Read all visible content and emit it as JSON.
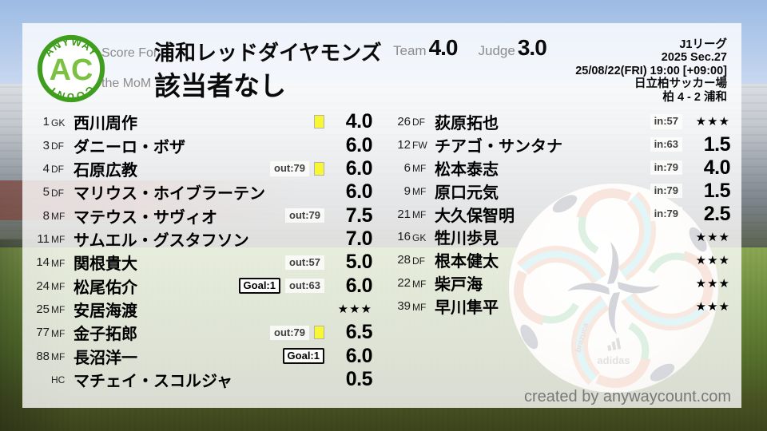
{
  "brand": {
    "arc_top": "ANYWAY",
    "center": "AC",
    "arc_bottom": "COUNT"
  },
  "colors": {
    "logo_ring_green": "#3f9e1d",
    "logo_ac_green": "#7cc143",
    "yellow_card": "#f7f736",
    "panel_overlay": "rgba(255,255,255,0.80)"
  },
  "header": {
    "score_for_label": "Score For",
    "team_name": "浦和レッドダイヤモンズ",
    "mom_label": "the MoM",
    "mom_value": "該当者なし",
    "team_score_label": "Team",
    "team_score": "4.0",
    "judge_score_label": "Judge",
    "judge_score": "3.0"
  },
  "match_info": {
    "league": "J1リーグ",
    "season": "2025 Sec.27",
    "datetime": "25/08/22(FRI) 19:00 [+09:00]",
    "venue": "日立柏サッカー場",
    "result": "柏 4 - 2 浦和"
  },
  "lineup": [
    {
      "num": "1",
      "pos": "GK",
      "name": "西川周作",
      "yellow": true,
      "score": "4.0"
    },
    {
      "num": "3",
      "pos": "DF",
      "name": "ダニーロ・ボザ",
      "score": "6.0"
    },
    {
      "num": "4",
      "pos": "DF",
      "name": "石原広教",
      "out": "out:79",
      "yellow": true,
      "score": "6.0"
    },
    {
      "num": "5",
      "pos": "DF",
      "name": "マリウス・ホイブラーテン",
      "score": "6.0"
    },
    {
      "num": "8",
      "pos": "MF",
      "name": "マテウス・サヴィオ",
      "out": "out:79",
      "score": "7.5"
    },
    {
      "num": "11",
      "pos": "MF",
      "name": "サムエル・グスタフソン",
      "score": "7.0"
    },
    {
      "num": "14",
      "pos": "MF",
      "name": "関根貴大",
      "out": "out:57",
      "score": "5.0"
    },
    {
      "num": "24",
      "pos": "MF",
      "name": "松尾佑介",
      "goal": "Goal:1",
      "out": "out:63",
      "score": "6.0"
    },
    {
      "num": "25",
      "pos": "MF",
      "name": "安居海渡",
      "score": "★★★"
    },
    {
      "num": "77",
      "pos": "MF",
      "name": "金子拓郎",
      "out": "out:79",
      "yellow": true,
      "score": "6.5"
    },
    {
      "num": "88",
      "pos": "MF",
      "name": "長沼洋一",
      "goal": "Goal:1",
      "score": "6.0"
    },
    {
      "num": "",
      "pos": "HC",
      "name": "マチェイ・スコルジャ",
      "score": "0.5"
    }
  ],
  "subs": [
    {
      "num": "26",
      "pos": "DF",
      "name": "荻原拓也",
      "in": "in:57",
      "score": "★★★"
    },
    {
      "num": "12",
      "pos": "FW",
      "name": "チアゴ・サンタナ",
      "in": "in:63",
      "score": "1.5"
    },
    {
      "num": "6",
      "pos": "MF",
      "name": "松本泰志",
      "in": "in:79",
      "score": "4.0"
    },
    {
      "num": "9",
      "pos": "MF",
      "name": "原口元気",
      "in": "in:79",
      "score": "1.5"
    },
    {
      "num": "21",
      "pos": "MF",
      "name": "大久保智明",
      "in": "in:79",
      "score": "2.5"
    },
    {
      "num": "16",
      "pos": "GK",
      "name": "牲川歩見",
      "score": "★★★"
    },
    {
      "num": "28",
      "pos": "DF",
      "name": "根本健太",
      "score": "★★★"
    },
    {
      "num": "22",
      "pos": "MF",
      "name": "柴戸海",
      "score": "★★★"
    },
    {
      "num": "39",
      "pos": "MF",
      "name": "早川隼平",
      "score": "★★★"
    }
  ],
  "footer": {
    "credit": "created by anywaycount.com"
  }
}
